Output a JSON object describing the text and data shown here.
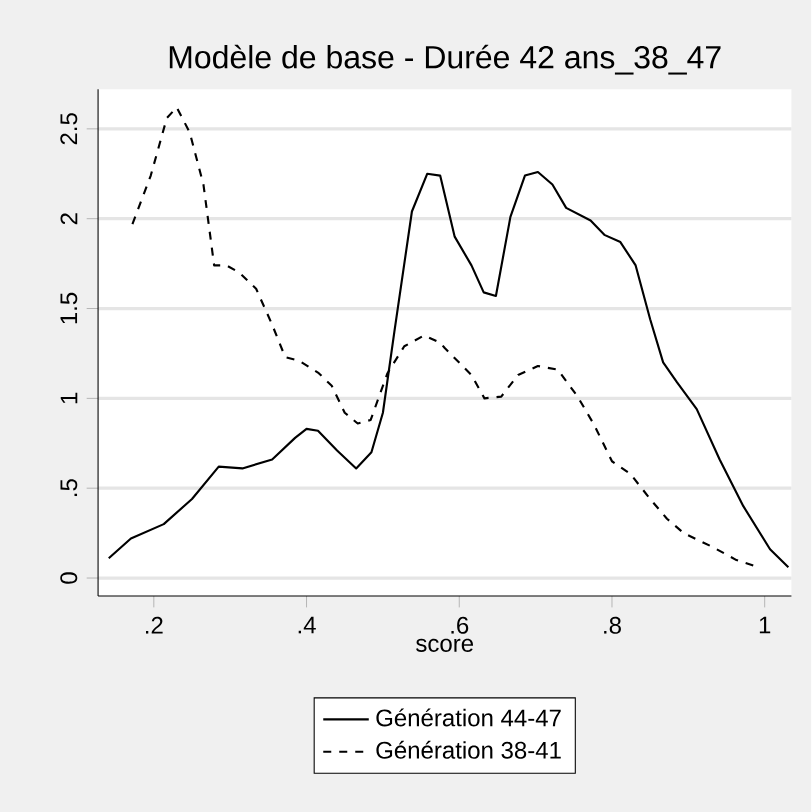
{
  "chart_data": {
    "type": "line",
    "title": "Modèle de base - Durée 42 ans_38_47",
    "xlabel": "score",
    "xlim": [
      0.127,
      1.035
    ],
    "ylim": [
      -0.1,
      2.72
    ],
    "xticks": [
      {
        "value": 0.2,
        "label": ".2"
      },
      {
        "value": 0.4,
        "label": ".4"
      },
      {
        "value": 0.6,
        "label": ".6"
      },
      {
        "value": 0.8,
        "label": ".8"
      },
      1
    ],
    "yticks": [
      0,
      {
        "value": 0.5,
        "label": ".5"
      },
      1,
      1.5,
      2,
      2.5
    ],
    "grid": "y",
    "legend": "bottom",
    "series": [
      {
        "name": "Génération 44-47",
        "color": "#000000",
        "line_style": "solid",
        "x": [
          0.141,
          0.17,
          0.213,
          0.25,
          0.285,
          0.316,
          0.355,
          0.385,
          0.4,
          0.415,
          0.44,
          0.465,
          0.485,
          0.5,
          0.515,
          0.538,
          0.558,
          0.575,
          0.594,
          0.616,
          0.632,
          0.648,
          0.667,
          0.686,
          0.703,
          0.722,
          0.74,
          0.772,
          0.79,
          0.811,
          0.831,
          0.85,
          0.867,
          0.885,
          0.911,
          0.941,
          0.972,
          1.007,
          1.031
        ],
        "values": [
          0.11,
          0.22,
          0.3,
          0.44,
          0.62,
          0.61,
          0.66,
          0.78,
          0.83,
          0.82,
          0.71,
          0.61,
          0.7,
          0.92,
          1.37,
          2.04,
          2.25,
          2.24,
          1.9,
          1.74,
          1.59,
          1.57,
          2.01,
          2.24,
          2.26,
          2.19,
          2.06,
          1.99,
          1.91,
          1.87,
          1.74,
          1.44,
          1.2,
          1.09,
          0.94,
          0.66,
          0.4,
          0.16,
          0.06
        ]
      },
      {
        "name": "Génération 38-41",
        "color": "#000000",
        "line_style": "dashed",
        "x": [
          0.172,
          0.196,
          0.217,
          0.23,
          0.247,
          0.265,
          0.279,
          0.295,
          0.312,
          0.334,
          0.355,
          0.372,
          0.39,
          0.416,
          0.433,
          0.45,
          0.467,
          0.484,
          0.506,
          0.528,
          0.554,
          0.575,
          0.581,
          0.616,
          0.633,
          0.655,
          0.677,
          0.703,
          0.729,
          0.755,
          0.777,
          0.8,
          0.824,
          0.85,
          0.872,
          0.894,
          0.933,
          0.963,
          0.985
        ],
        "values": [
          1.97,
          2.24,
          2.56,
          2.62,
          2.48,
          2.19,
          1.74,
          1.74,
          1.7,
          1.61,
          1.41,
          1.23,
          1.21,
          1.14,
          1.07,
          0.92,
          0.86,
          0.88,
          1.14,
          1.29,
          1.35,
          1.31,
          1.28,
          1.13,
          1.0,
          1.01,
          1.13,
          1.18,
          1.16,
          1.01,
          0.85,
          0.65,
          0.58,
          0.44,
          0.33,
          0.25,
          0.17,
          0.1,
          0.07
        ]
      }
    ]
  }
}
